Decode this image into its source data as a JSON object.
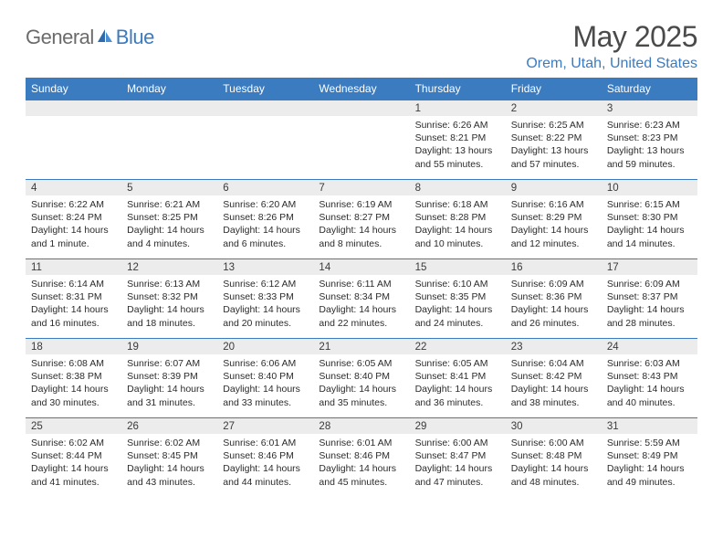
{
  "logo": {
    "text1": "General",
    "text2": "Blue"
  },
  "title": "May 2025",
  "location": "Orem, Utah, United States",
  "colors": {
    "header_bg": "#3b7bc0",
    "header_text": "#ffffff",
    "title_text": "#4a4a4a",
    "location_text": "#3b7bc0",
    "logo_gray": "#6b6b6b",
    "daynum_bg": "#ececec",
    "body_text": "#2b2b2b",
    "rule": "#3b7bc0",
    "background": "#ffffff"
  },
  "daynames": [
    "Sunday",
    "Monday",
    "Tuesday",
    "Wednesday",
    "Thursday",
    "Friday",
    "Saturday"
  ],
  "first_weekday": 4,
  "days": [
    {
      "n": 1,
      "sr": "6:26 AM",
      "ss": "8:21 PM",
      "dl": "13 hours and 55 minutes."
    },
    {
      "n": 2,
      "sr": "6:25 AM",
      "ss": "8:22 PM",
      "dl": "13 hours and 57 minutes."
    },
    {
      "n": 3,
      "sr": "6:23 AM",
      "ss": "8:23 PM",
      "dl": "13 hours and 59 minutes."
    },
    {
      "n": 4,
      "sr": "6:22 AM",
      "ss": "8:24 PM",
      "dl": "14 hours and 1 minute."
    },
    {
      "n": 5,
      "sr": "6:21 AM",
      "ss": "8:25 PM",
      "dl": "14 hours and 4 minutes."
    },
    {
      "n": 6,
      "sr": "6:20 AM",
      "ss": "8:26 PM",
      "dl": "14 hours and 6 minutes."
    },
    {
      "n": 7,
      "sr": "6:19 AM",
      "ss": "8:27 PM",
      "dl": "14 hours and 8 minutes."
    },
    {
      "n": 8,
      "sr": "6:18 AM",
      "ss": "8:28 PM",
      "dl": "14 hours and 10 minutes."
    },
    {
      "n": 9,
      "sr": "6:16 AM",
      "ss": "8:29 PM",
      "dl": "14 hours and 12 minutes."
    },
    {
      "n": 10,
      "sr": "6:15 AM",
      "ss": "8:30 PM",
      "dl": "14 hours and 14 minutes."
    },
    {
      "n": 11,
      "sr": "6:14 AM",
      "ss": "8:31 PM",
      "dl": "14 hours and 16 minutes."
    },
    {
      "n": 12,
      "sr": "6:13 AM",
      "ss": "8:32 PM",
      "dl": "14 hours and 18 minutes."
    },
    {
      "n": 13,
      "sr": "6:12 AM",
      "ss": "8:33 PM",
      "dl": "14 hours and 20 minutes."
    },
    {
      "n": 14,
      "sr": "6:11 AM",
      "ss": "8:34 PM",
      "dl": "14 hours and 22 minutes."
    },
    {
      "n": 15,
      "sr": "6:10 AM",
      "ss": "8:35 PM",
      "dl": "14 hours and 24 minutes."
    },
    {
      "n": 16,
      "sr": "6:09 AM",
      "ss": "8:36 PM",
      "dl": "14 hours and 26 minutes."
    },
    {
      "n": 17,
      "sr": "6:09 AM",
      "ss": "8:37 PM",
      "dl": "14 hours and 28 minutes."
    },
    {
      "n": 18,
      "sr": "6:08 AM",
      "ss": "8:38 PM",
      "dl": "14 hours and 30 minutes."
    },
    {
      "n": 19,
      "sr": "6:07 AM",
      "ss": "8:39 PM",
      "dl": "14 hours and 31 minutes."
    },
    {
      "n": 20,
      "sr": "6:06 AM",
      "ss": "8:40 PM",
      "dl": "14 hours and 33 minutes."
    },
    {
      "n": 21,
      "sr": "6:05 AM",
      "ss": "8:40 PM",
      "dl": "14 hours and 35 minutes."
    },
    {
      "n": 22,
      "sr": "6:05 AM",
      "ss": "8:41 PM",
      "dl": "14 hours and 36 minutes."
    },
    {
      "n": 23,
      "sr": "6:04 AM",
      "ss": "8:42 PM",
      "dl": "14 hours and 38 minutes."
    },
    {
      "n": 24,
      "sr": "6:03 AM",
      "ss": "8:43 PM",
      "dl": "14 hours and 40 minutes."
    },
    {
      "n": 25,
      "sr": "6:02 AM",
      "ss": "8:44 PM",
      "dl": "14 hours and 41 minutes."
    },
    {
      "n": 26,
      "sr": "6:02 AM",
      "ss": "8:45 PM",
      "dl": "14 hours and 43 minutes."
    },
    {
      "n": 27,
      "sr": "6:01 AM",
      "ss": "8:46 PM",
      "dl": "14 hours and 44 minutes."
    },
    {
      "n": 28,
      "sr": "6:01 AM",
      "ss": "8:46 PM",
      "dl": "14 hours and 45 minutes."
    },
    {
      "n": 29,
      "sr": "6:00 AM",
      "ss": "8:47 PM",
      "dl": "14 hours and 47 minutes."
    },
    {
      "n": 30,
      "sr": "6:00 AM",
      "ss": "8:48 PM",
      "dl": "14 hours and 48 minutes."
    },
    {
      "n": 31,
      "sr": "5:59 AM",
      "ss": "8:49 PM",
      "dl": "14 hours and 49 minutes."
    }
  ],
  "labels": {
    "sunrise": "Sunrise:",
    "sunset": "Sunset:",
    "daylight": "Daylight:"
  }
}
